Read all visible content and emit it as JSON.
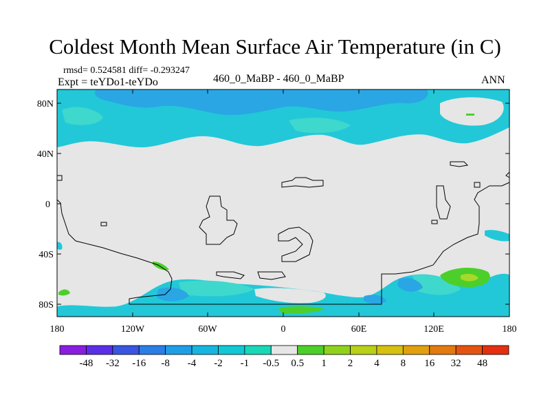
{
  "title": "Coldest Month Mean Surface Air Temperature (in C)",
  "subtitle": {
    "stats": "rmsd= 0.524581 diff= -0.293247",
    "expt": "Expt = teYDo1-teYDo",
    "center": "460_0_MaBP - 460_0_MaBP",
    "period": "ANN"
  },
  "axes": {
    "lat_labels": [
      "80N",
      "40N",
      "0",
      "40S",
      "80S"
    ],
    "lon_labels": [
      "180",
      "120W",
      "60W",
      "0",
      "60E",
      "120E",
      "180"
    ]
  },
  "colorbar": {
    "labels": [
      "-48",
      "-32",
      "-16",
      "-8",
      "-4",
      "-2",
      "-1",
      "-0.5",
      "0.5",
      "1",
      "2",
      "4",
      "8",
      "16",
      "32",
      "48"
    ],
    "colors": [
      "#8a1ee0",
      "#5b2ee8",
      "#3a55e0",
      "#2a7ee6",
      "#1f9ee6",
      "#16b6e0",
      "#10c8d6",
      "#18d8b8",
      "#e6e6e6",
      "#4ccf2a",
      "#8fd21c",
      "#b8d018",
      "#d6c010",
      "#e0a010",
      "#e27a10",
      "#e45410",
      "#e23010"
    ]
  },
  "map_colors": {
    "neutral": "#e6e6e6",
    "cyan": "#22c8d8",
    "cyan_light": "#3ed8cc",
    "blue": "#2aa6e4",
    "green": "#4ccf2a",
    "yellow_green": "#a8d82a"
  }
}
